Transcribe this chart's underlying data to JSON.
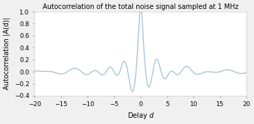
{
  "title": "Autocorrelation of the total noise signal sampled at 1 MHz",
  "xlabel": "Delay  d",
  "ylabel": "Autocorrelation |A(d)|",
  "xlim": [
    -20,
    20
  ],
  "ylim": [
    -0.4,
    1.0
  ],
  "yticks": [
    -0.4,
    -0.2,
    0.0,
    0.2,
    0.4,
    0.6,
    0.8,
    1.0
  ],
  "xticks": [
    -20,
    -15,
    -10,
    -5,
    0,
    5,
    10,
    15,
    20
  ],
  "line_color": "#9bbfd4",
  "line_width": 0.9,
  "title_fontsize": 7.0,
  "axis_label_fontsize": 7.0,
  "tick_fontsize": 6.5,
  "background_color": "#f0f0f0",
  "plot_bg_color": "#ffffff"
}
